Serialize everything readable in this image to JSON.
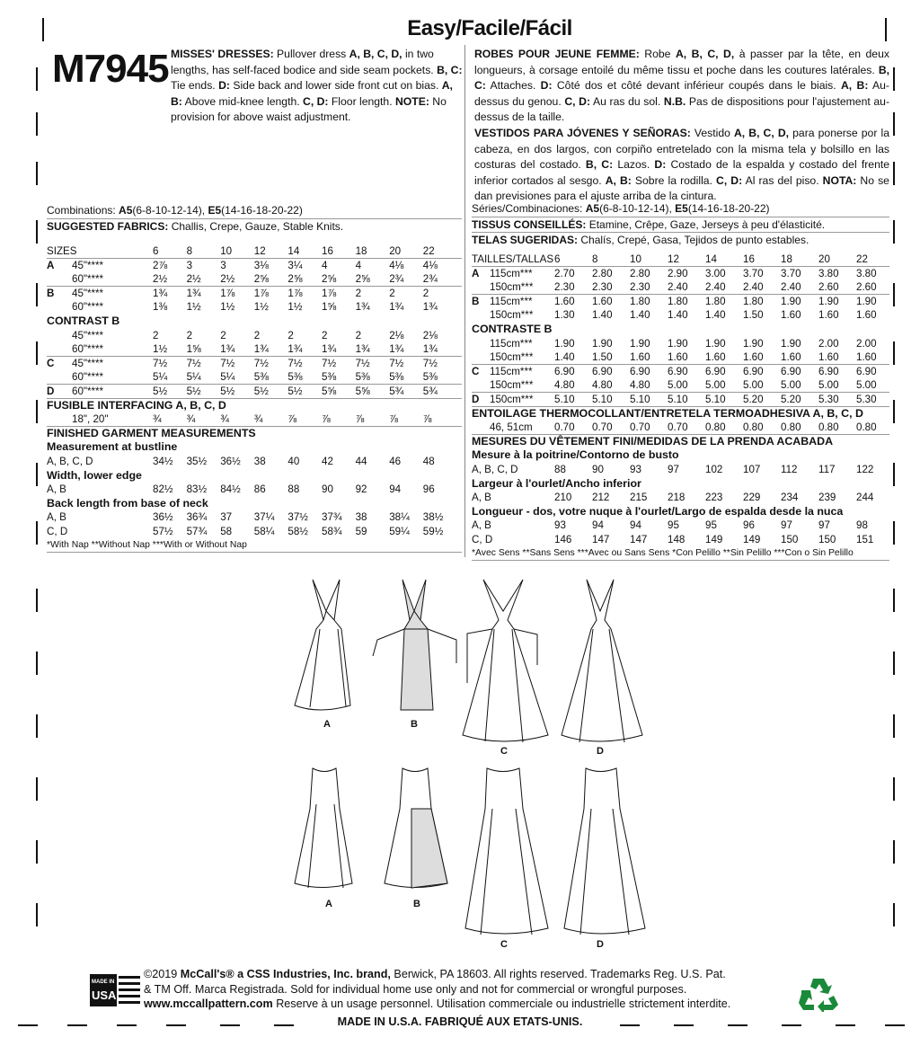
{
  "header": {
    "rating": "Easy/Facile/Fácil",
    "pattern_number": "M7945"
  },
  "description_en": {
    "title": "MISSES' DRESSES:",
    "text1": " Pullover dress ",
    "b1": "A, B, C, D,",
    "text2": " in two lengths, has self-faced bodice and side seam pockets. ",
    "b2": "B, C:",
    "text3": " Tie ends. ",
    "b3": "D:",
    "text4": " Side back and lower side front cut on bias. ",
    "b4": "A, B:",
    "text5": " Above mid-knee length. ",
    "b5": "C, D:",
    "text6": " Floor length. ",
    "b6": "NOTE:",
    "text7": " No provision for above waist adjustment."
  },
  "description_fr": {
    "title": "ROBES POUR JEUNE FEMME:",
    "text1": " Robe ",
    "b1": "A, B, C, D,",
    "text2": " à passer par la tête, en deux longueurs, à corsage entoilé du même tissu et poche dans les coutures latérales. ",
    "b2": "B, C:",
    "text3": " Attaches. ",
    "b3": "D:",
    "text4": " Côté dos et côté devant inférieur coupés dans le biais. ",
    "b4": "A, B:",
    "text5": " Au-dessus du genou. ",
    "b5": "C, D:",
    "text6": " Au ras du sol. ",
    "b6": "N.B.",
    "text7": " Pas de dispositions pour l'ajustement au-dessus de la taille."
  },
  "description_es": {
    "title": "VESTIDOS PARA JÓVENES Y SEÑORAS:",
    "text1": " Vestido ",
    "b1": "A, B, C, D,",
    "text2": " para ponerse por la cabeza, en dos largos, con corpiño entretelado con la misma tela y bolsillo en las costuras del costado. ",
    "b2": "B, C:",
    "text3": " Lazos. ",
    "b3": "D:",
    "text4": " Costado de la espalda y costado del frente inferior cortados al sesgo. ",
    "b4": "A, B:",
    "text5": " Sobre la rodilla. ",
    "b5": "C, D:",
    "text6": " Al ras del piso. ",
    "b6": "NOTA:",
    "text7": " No se dan previsiones para el ajuste arriba de la cintura."
  },
  "left": {
    "combinations_label": "Combinations: ",
    "combo_a": "A5",
    "combo_a_sizes": "(6-8-10-12-14), ",
    "combo_e": "E5",
    "combo_e_sizes": "(14-16-18-20-22)",
    "fabrics_label": "SUGGESTED FABRICS:",
    "fabrics": " Challis, Crepe, Gauze, Stable Knits.",
    "rows": [
      {
        "lab": "SIZES",
        "vals": [
          "6",
          "8",
          "10",
          "12",
          "14",
          "16",
          "18",
          "20",
          "22"
        ],
        "rule": true
      },
      {
        "lab": "A",
        "sub": "45\"****",
        "vals": [
          "2⅞",
          "3",
          "3",
          "3⅛",
          "3¼",
          "4",
          "4",
          "4⅛",
          "4⅛"
        ]
      },
      {
        "sub": "60\"****",
        "vals": [
          "2½",
          "2½",
          "2½",
          "2⅝",
          "2⅝",
          "2⅝",
          "2⅝",
          "2¾",
          "2¾"
        ],
        "rule": true
      },
      {
        "lab": "B",
        "sub": "45\"****",
        "vals": [
          "1¾",
          "1¾",
          "1⅞",
          "1⅞",
          "1⅞",
          "1⅞",
          "2",
          "2",
          "2"
        ]
      },
      {
        "sub": "60\"****",
        "vals": [
          "1⅜",
          "1½",
          "1½",
          "1½",
          "1½",
          "1⅝",
          "1¾",
          "1¾",
          "1¾"
        ]
      },
      {
        "sec": "CONTRAST B"
      },
      {
        "sub": "45\"****",
        "vals": [
          "2",
          "2",
          "2",
          "2",
          "2",
          "2",
          "2",
          "2⅛",
          "2⅛"
        ]
      },
      {
        "sub": "60\"****",
        "vals": [
          "1½",
          "1⅝",
          "1¾",
          "1¾",
          "1¾",
          "1¾",
          "1¾",
          "1¾",
          "1¾"
        ],
        "rule": true
      },
      {
        "lab": "C",
        "sub": "45\"****",
        "vals": [
          "7½",
          "7½",
          "7½",
          "7½",
          "7½",
          "7½",
          "7½",
          "7½",
          "7½"
        ]
      },
      {
        "sub": "60\"****",
        "vals": [
          "5¼",
          "5¼",
          "5¼",
          "5⅜",
          "5⅜",
          "5⅜",
          "5⅜",
          "5⅜",
          "5⅜"
        ],
        "rule": true
      },
      {
        "lab": "D",
        "sub": "60\"****",
        "vals": [
          "5½",
          "5½",
          "5½",
          "5½",
          "5½",
          "5⅝",
          "5⅝",
          "5¾",
          "5¾"
        ],
        "rule": true
      },
      {
        "sec": "FUSIBLE INTERFACING A, B, C, D"
      },
      {
        "sub": "18\", 20\"",
        "vals": [
          "¾",
          "¾",
          "¾",
          "¾",
          "⅞",
          "⅞",
          "⅞",
          "⅞",
          "⅞"
        ],
        "rule": true
      },
      {
        "sec": "FINISHED GARMENT MEASUREMENTS"
      },
      {
        "sec": "Measurement at bustline"
      },
      {
        "lab": "A, B, C, D",
        "vals": [
          "34½",
          "35½",
          "36½",
          "38",
          "40",
          "42",
          "44",
          "46",
          "48"
        ]
      },
      {
        "sec": "Width, lower edge"
      },
      {
        "lab": "A, B",
        "vals": [
          "82½",
          "83½",
          "84½",
          "86",
          "88",
          "90",
          "92",
          "94",
          "96"
        ]
      },
      {
        "sec": "Back length from base of neck"
      },
      {
        "lab": "A, B",
        "vals": [
          "36½",
          "36¾",
          "37",
          "37¼",
          "37½",
          "37¾",
          "38",
          "38¼",
          "38½"
        ]
      },
      {
        "lab": "C, D",
        "vals": [
          "57½",
          "57¾",
          "58",
          "58¼",
          "58½",
          "58¾",
          "59",
          "59¼",
          "59½"
        ]
      },
      {
        "foot": "*With Nap **Without Nap ***With or Without Nap",
        "rule": true
      }
    ]
  },
  "right": {
    "combinations_label": "Séries/Combinaciones: ",
    "combo_a": "A5",
    "combo_a_sizes": "(6-8-10-12-14), ",
    "combo_e": "E5",
    "combo_e_sizes": "(14-16-18-20-22)",
    "fabrics_fr_label": "TISSUS CONSEILLÉS:",
    "fabrics_fr": " Etamine, Crêpe, Gaze, Jerseys à peu d'élasticité.",
    "fabrics_es_label": "TELAS SUGERIDAS:",
    "fabrics_es": " Chalís, Crepé, Gasa, Tejidos de punto estables.",
    "rows": [
      {
        "lab": "TAILLES/TALLAS",
        "vals": [
          "6",
          "8",
          "10",
          "12",
          "14",
          "16",
          "18",
          "20",
          "22"
        ],
        "rule": true
      },
      {
        "lab": "A",
        "sub": "115cm***",
        "vals": [
          "2.70",
          "2.80",
          "2.80",
          "2.90",
          "3.00",
          "3.70",
          "3.70",
          "3.80",
          "3.80"
        ]
      },
      {
        "sub": "150cm***",
        "vals": [
          "2.30",
          "2.30",
          "2.30",
          "2.40",
          "2.40",
          "2.40",
          "2.40",
          "2.60",
          "2.60"
        ],
        "rule": true
      },
      {
        "lab": "B",
        "sub": "115cm***",
        "vals": [
          "1.60",
          "1.60",
          "1.80",
          "1.80",
          "1.80",
          "1.80",
          "1.90",
          "1.90",
          "1.90"
        ]
      },
      {
        "sub": "150cm***",
        "vals": [
          "1.30",
          "1.40",
          "1.40",
          "1.40",
          "1.40",
          "1.50",
          "1.60",
          "1.60",
          "1.60"
        ]
      },
      {
        "sec": "CONTRASTE B"
      },
      {
        "sub": "115cm***",
        "vals": [
          "1.90",
          "1.90",
          "1.90",
          "1.90",
          "1.90",
          "1.90",
          "1.90",
          "2.00",
          "2.00"
        ]
      },
      {
        "sub": "150cm***",
        "vals": [
          "1.40",
          "1.50",
          "1.60",
          "1.60",
          "1.60",
          "1.60",
          "1.60",
          "1.60",
          "1.60"
        ],
        "rule": true
      },
      {
        "lab": "C",
        "sub": "115cm***",
        "vals": [
          "6.90",
          "6.90",
          "6.90",
          "6.90",
          "6.90",
          "6.90",
          "6.90",
          "6.90",
          "6.90"
        ]
      },
      {
        "sub": "150cm***",
        "vals": [
          "4.80",
          "4.80",
          "4.80",
          "5.00",
          "5.00",
          "5.00",
          "5.00",
          "5.00",
          "5.00"
        ],
        "rule": true
      },
      {
        "lab": "D",
        "sub": "150cm***",
        "vals": [
          "5.10",
          "5.10",
          "5.10",
          "5.10",
          "5.10",
          "5.20",
          "5.20",
          "5.30",
          "5.30"
        ],
        "rule": true
      },
      {
        "sec": "ENTOILAGE THERMOCOLLANT/ENTRETELA TERMOADHESIVA A, B, C, D"
      },
      {
        "sub": "46, 51cm",
        "vals": [
          "0.70",
          "0.70",
          "0.70",
          "0.70",
          "0.80",
          "0.80",
          "0.80",
          "0.80",
          "0.80"
        ],
        "rule": true
      },
      {
        "sec": "MESURES DU VÊTEMENT FINI/MEDIDAS DE LA PRENDA ACABADA"
      },
      {
        "sec": "Mesure à la poitrine/Contorno de busto"
      },
      {
        "lab": "A, B, C, D",
        "vals": [
          "88",
          "90",
          "93",
          "97",
          "102",
          "107",
          "112",
          "117",
          "122"
        ]
      },
      {
        "sec": "Largeur à l'ourlet/Ancho inferior"
      },
      {
        "lab": "A, B",
        "vals": [
          "210",
          "212",
          "215",
          "218",
          "223",
          "229",
          "234",
          "239",
          "244"
        ]
      },
      {
        "sec": "Longueur - dos, votre nuque à l'ourlet/Largo de espalda desde la nuca"
      },
      {
        "lab": "A, B",
        "vals": [
          "93",
          "94",
          "94",
          "95",
          "95",
          "96",
          "97",
          "97",
          "98"
        ]
      },
      {
        "lab": "C, D",
        "vals": [
          "146",
          "147",
          "147",
          "148",
          "149",
          "149",
          "150",
          "150",
          "151"
        ]
      },
      {
        "foot": "*Avec Sens **Sans Sens ***Avec ou Sans Sens  *Con Pelillo **Sin Pelillo ***Con o Sin Pelillo",
        "rule": true
      }
    ]
  },
  "drawings": {
    "front": [
      "A",
      "B",
      "C",
      "D"
    ],
    "back": [
      "A",
      "B",
      "C",
      "D"
    ]
  },
  "footer": {
    "made_in_usa_logo": "MADE IN USA",
    "copyright": "©2019 ",
    "brand": "McCall's® a CSS Industries, Inc. brand,",
    "line1": " Berwick, PA 18603. All rights reserved. Trademarks Reg. U.S. Pat.",
    "line2": "& TM Off. Marca Registrada. Sold for individual home use only and not for commercial or wrongful purposes.",
    "website": "www.mccallpattern.com",
    "line3": " Reserve à un usage personnel. Utilisation commerciale ou industrielle strictement interdite.",
    "made_in": "MADE IN U.S.A.  FABRIQUÉ AUX ETATS-UNIS."
  }
}
